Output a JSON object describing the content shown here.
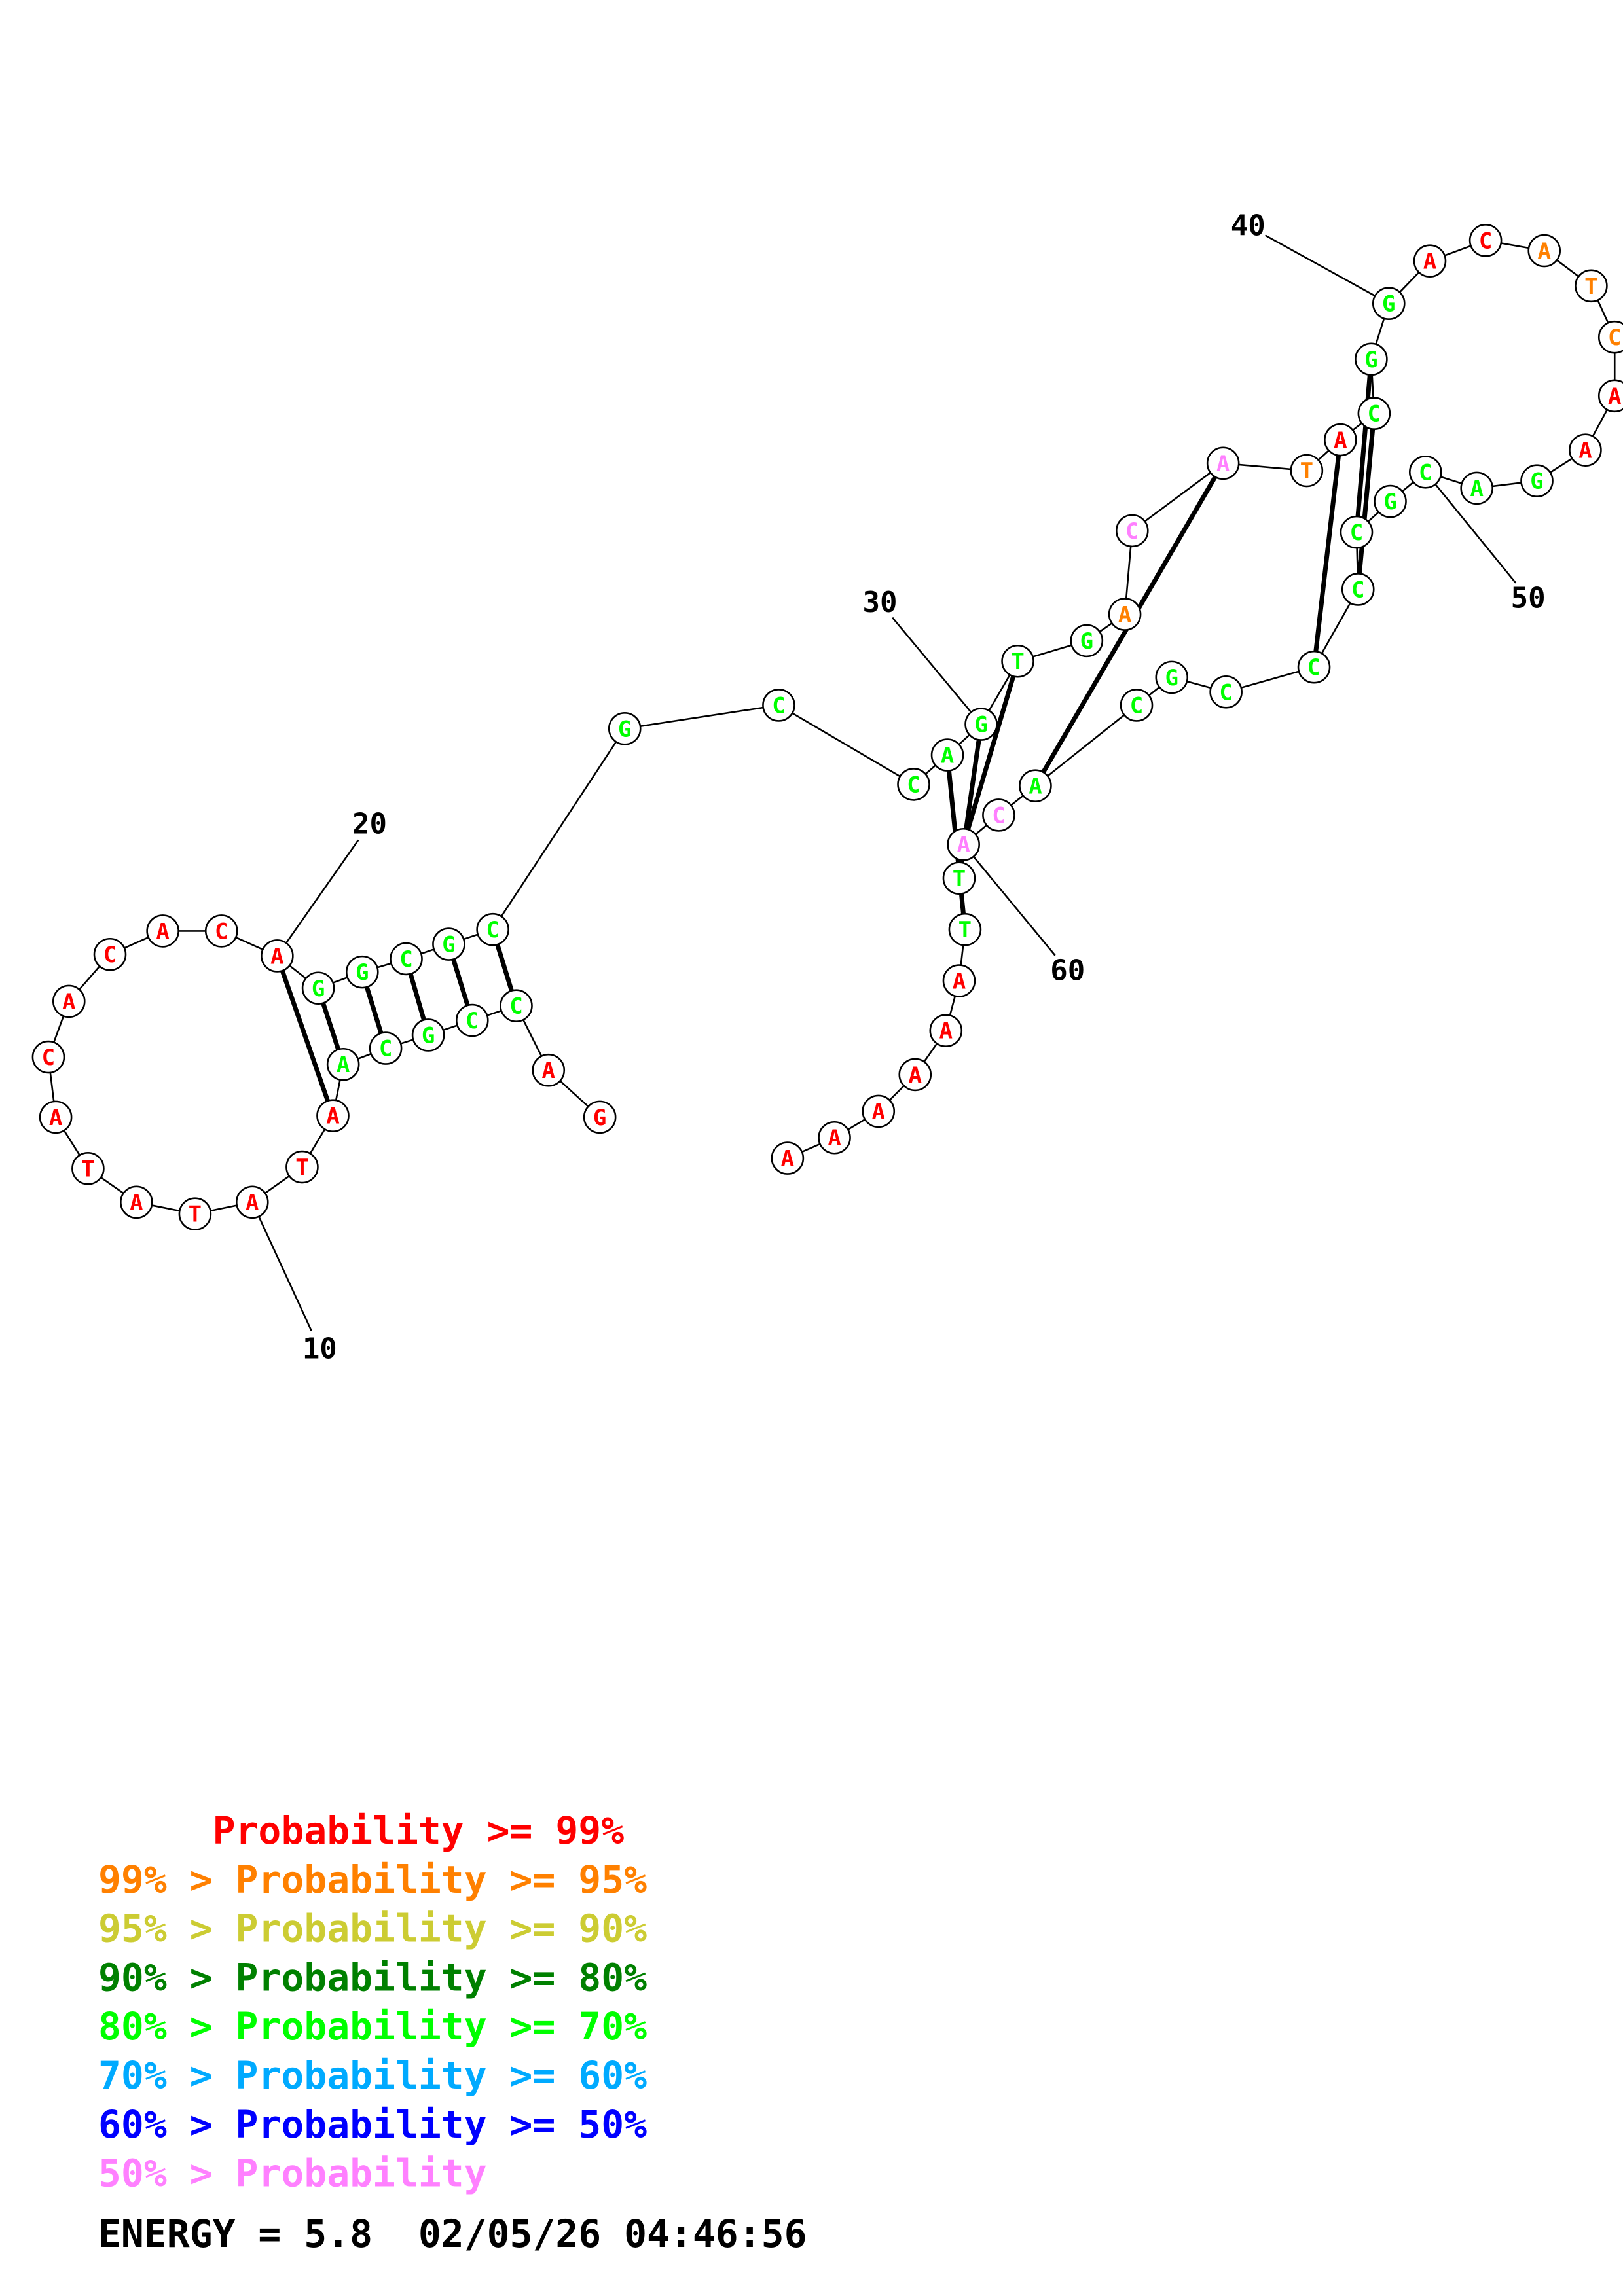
{
  "structure": {
    "sequence": [
      "G",
      "A",
      "C",
      "C",
      "G",
      "C",
      "A",
      "A",
      "T",
      "A",
      "T",
      "A",
      "T",
      "A",
      "C",
      "A",
      "C",
      "A",
      "C",
      "A",
      "G",
      "G",
      "C",
      "G",
      "C",
      "G",
      "C",
      "C",
      "A",
      "G",
      "T",
      "G",
      "A",
      "C",
      "A",
      "T",
      "A",
      "C",
      "G",
      "G",
      "A",
      "C",
      "A",
      "T",
      "C",
      "A",
      "A",
      "G",
      "A",
      "C",
      "G",
      "C",
      "C",
      "C",
      "C",
      "G",
      "C",
      "A",
      "C",
      "A",
      "T",
      "T",
      "A",
      "A",
      "A",
      "A",
      "A",
      "A"
    ],
    "colors": [
      "red",
      "red",
      "green",
      "green",
      "green",
      "green",
      "green",
      "red",
      "red",
      "red",
      "red",
      "red",
      "red",
      "red",
      "red",
      "red",
      "red",
      "red",
      "red",
      "red",
      "green",
      "green",
      "green",
      "green",
      "green",
      "green",
      "green",
      "green",
      "green",
      "green",
      "green",
      "green",
      "orange",
      "pink",
      "pink",
      "orange",
      "red",
      "green",
      "green",
      "green",
      "red",
      "red",
      "orange",
      "orange",
      "orange",
      "red",
      "red",
      "green",
      "green",
      "green",
      "green",
      "green",
      "green",
      "green",
      "green",
      "green",
      "green",
      "green",
      "pink",
      "pink",
      "green",
      "green",
      "red",
      "red",
      "red",
      "red",
      "red",
      "red"
    ],
    "pairs": [],
    "tick_labels": [
      "10",
      "20",
      "30",
      "40",
      "50",
      "60"
    ]
  },
  "palette": {
    "red": "#ff0000",
    "orange": "#ff8000",
    "yellow": "#cccc33",
    "darkgreen": "#008000",
    "green": "#00ff00",
    "lightblue": "#00aaff",
    "blue": "#0000ff",
    "pink": "#ff80ff"
  },
  "legend": [
    {
      "text": "     Probability >= 99%",
      "color": "#ff0000"
    },
    {
      "text": "99% > Probability >= 95%",
      "color": "#ff8000"
    },
    {
      "text": "95% > Probability >= 90%",
      "color": "#cccc33"
    },
    {
      "text": "90% > Probability >= 80%",
      "color": "#008000"
    },
    {
      "text": "80% > Probability >= 70%",
      "color": "#00ff00"
    },
    {
      "text": "70% > Probability >= 60%",
      "color": "#00aaff"
    },
    {
      "text": "60% > Probability >= 50%",
      "color": "#0000ff"
    },
    {
      "text": "50% > Probability",
      "color": "#ff80ff"
    }
  ],
  "footer": {
    "energy_text": "ENERGY = 5.8  02/05/26 04:46:56"
  }
}
